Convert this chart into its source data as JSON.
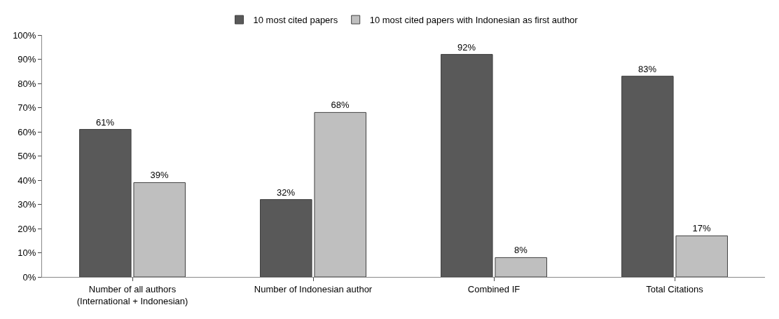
{
  "chart_data": {
    "type": "bar",
    "categories": [
      "Number of all authors\n(International + Indonesian)",
      "Number of Indonesian author",
      "Combined IF",
      "Total Citations"
    ],
    "series": [
      {
        "name": "10 most cited papers",
        "color": "#595959",
        "values": [
          61,
          32,
          92,
          83
        ],
        "value_labels": [
          "61%",
          "32%",
          "92%",
          "83%"
        ]
      },
      {
        "name": "10 most cited papers with Indonesian as first author",
        "color": "#bfbfbf",
        "values": [
          39,
          68,
          8,
          17
        ],
        "value_labels": [
          "39%",
          "68%",
          "8%",
          "17%"
        ]
      }
    ],
    "ylim": [
      0,
      100
    ],
    "yticks": [
      {
        "value": 0,
        "label": "0%"
      },
      {
        "value": 10,
        "label": "10%"
      },
      {
        "value": 20,
        "label": "20%"
      },
      {
        "value": 30,
        "label": "30%"
      },
      {
        "value": 40,
        "label": "40%"
      },
      {
        "value": 50,
        "label": "50%"
      },
      {
        "value": 60,
        "label": "60%"
      },
      {
        "value": 70,
        "label": "70%"
      },
      {
        "value": 80,
        "label": "80%"
      },
      {
        "value": 90,
        "label": "90%"
      },
      {
        "value": 100,
        "label": "100%"
      }
    ],
    "legend": "top"
  }
}
